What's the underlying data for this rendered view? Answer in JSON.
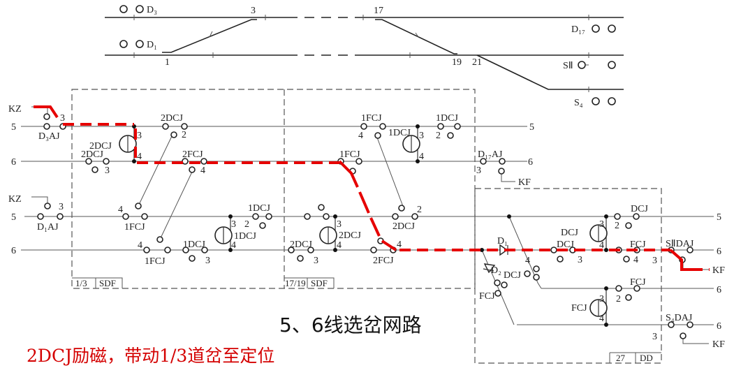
{
  "track_plan": {
    "signals": {
      "d3": "D₃",
      "d1": "D₁",
      "d17": "D₁₇",
      "s2": "SⅡ",
      "s4": "S₄"
    },
    "switches": {
      "sw3": "3",
      "sw1": "1",
      "sw17": "17",
      "sw19": "19",
      "sw21": "21"
    }
  },
  "circuit": {
    "line5": "5",
    "line6": "6",
    "kz": "KZ",
    "kf": "KF",
    "n2": "2",
    "n3": "3",
    "n4": "4",
    "relays": {
      "d3aj": "D₃AJ",
      "d1aj": "D₁AJ",
      "d17aj": "D₁₇AJ",
      "s2daj": "SⅡDAJ",
      "s4daj": "S₄DAJ",
      "dcj2": "2DCJ",
      "fcj2": "2FCJ",
      "dcj1": "1DCJ",
      "fcj1": "1FCJ",
      "dcj": "DCJ",
      "fcj": "FCJ",
      "d1": "D₁",
      "d2": "D₂"
    },
    "groups": [
      {
        "num": "1/3",
        "type": "SDF"
      },
      {
        "num": "17/19",
        "type": "SDF"
      },
      {
        "num": "27",
        "type": "DD"
      }
    ]
  },
  "title": "5、6线选岔网路",
  "caption": "2DCJ励磁，带动1/3道岔至定位",
  "colors": {
    "active_path": "#e60000",
    "caption": "#d40000"
  }
}
